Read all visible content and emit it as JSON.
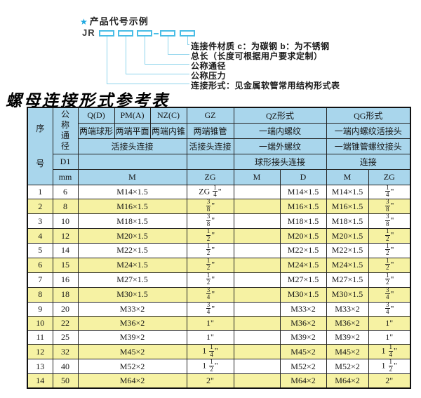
{
  "diagram": {
    "star": "★",
    "heading": "产品代号示例",
    "code_prefix": "JR",
    "labels": [
      "连接件材质 c：为碳钢 b：为不锈钢",
      "总长（长度可根据用户要求定制）",
      "公称通径",
      "公称压力",
      "连接形式：见金属软管常用结构形式表"
    ]
  },
  "title": "螺母连接形式参考表",
  "table": {
    "header": {
      "seq": "序号",
      "nominal_diameter": "公称通径",
      "d1": "D1",
      "mm": "mm",
      "q": "Q(D)",
      "pm": "PM(A)",
      "nz": "NZ(C)",
      "gz": "GZ",
      "qz": "QZ形式",
      "qg": "QG形式",
      "q_sub": "两端球形",
      "pm_sub": "两端平面",
      "nz_sub": "两端内锥",
      "gz_sub": "两端锥管",
      "qz_sub": "一端内螺纹",
      "qg_sub": "一端内螺纹活接头",
      "union_conn": "活接头连接",
      "gz_conn": "活接头连接",
      "qz_sub2": "一端外螺纹",
      "qg_sub2": "一端锥管螺纹接头",
      "qz_conn": "球形接头连接",
      "qg_conn": "连接",
      "m": "M",
      "zg": "ZG",
      "qz_m": "M",
      "qz_d": "D",
      "qg_m": "M",
      "qg_zg": "ZG"
    },
    "rows": [
      [
        "1",
        "6",
        "M14×1.5",
        "ZG 1/4\"",
        "",
        "M14×1.5",
        "M14×1.5",
        "1/4\""
      ],
      [
        "2",
        "8",
        "M16×1.5",
        "3/8\"",
        "",
        "M16×1.5",
        "M16×1.5",
        "3/8\""
      ],
      [
        "3",
        "10",
        "M18×1.5",
        "3/8\"",
        "",
        "M18×1.5",
        "M18×1.5",
        "3/8\""
      ],
      [
        "4",
        "12",
        "M20×1.5",
        "1/2\"",
        "",
        "M20×1.5",
        "M20×1.5",
        "1/2\""
      ],
      [
        "5",
        "14",
        "M22×1.5",
        "1/2\"",
        "",
        "M22×1.5",
        "M22×1.5",
        "1/2\""
      ],
      [
        "6",
        "15",
        "M24×1.5",
        "1/2\"",
        "",
        "M24×1.5",
        "M24×1.5",
        "1/2\""
      ],
      [
        "7",
        "16",
        "M27×1.5",
        "1/2\"",
        "",
        "M27×1.5",
        "M27×1.5",
        "1/2\""
      ],
      [
        "8",
        "18",
        "M30×1.5",
        "3/4\"",
        "",
        "M30×1.5",
        "M30×1.5",
        "3/4\""
      ],
      [
        "9",
        "20",
        "M33×2",
        "3/4\"",
        "",
        "M33×2",
        "M33×2",
        "3/4\""
      ],
      [
        "10",
        "22",
        "M36×2",
        "1\"",
        "",
        "M36×2",
        "M36×2",
        "1\""
      ],
      [
        "11",
        "25",
        "M39×2",
        "1\"",
        "",
        "M39×2",
        "M39×2",
        "1\""
      ],
      [
        "12",
        "32",
        "M45×2",
        "1 1/4\"",
        "",
        "M45×2",
        "M45×2",
        "1 1/4\""
      ],
      [
        "13",
        "40",
        "M52×2",
        "1 1/2\"",
        "",
        "M52×2",
        "M52×2",
        "1 1/2\""
      ],
      [
        "14",
        "50",
        "M64×2",
        "2\"",
        "",
        "M64×2",
        "M64×2",
        "2\""
      ]
    ]
  },
  "colors": {
    "header_blue": "#a9d6ec",
    "row_yellow": "#f6f2a3",
    "diagram_cyan": "#49bde6",
    "border_dark": "#111111"
  }
}
